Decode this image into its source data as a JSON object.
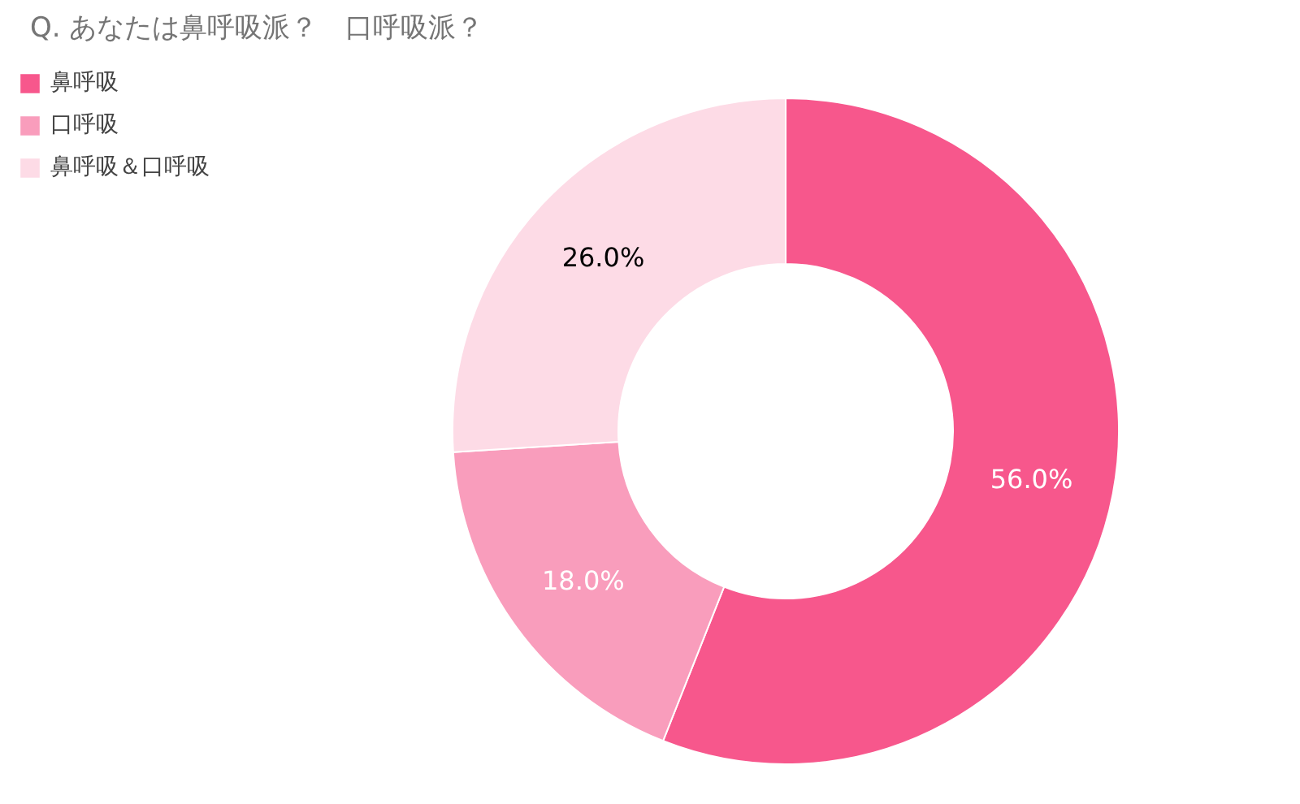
{
  "chart_data": {
    "type": "donut",
    "title": "Q. あなたは鼻呼吸派？　口呼吸派？",
    "categories": [
      "鼻呼吸",
      "口呼吸",
      "鼻呼吸＆口呼吸"
    ],
    "values": [
      56,
      18,
      26
    ],
    "colors": [
      "#f7578c",
      "#f99dbc",
      "#fddbe6"
    ],
    "value_labels": [
      "56.0%",
      "18.0%",
      "26.0%"
    ],
    "legend": "top left"
  }
}
